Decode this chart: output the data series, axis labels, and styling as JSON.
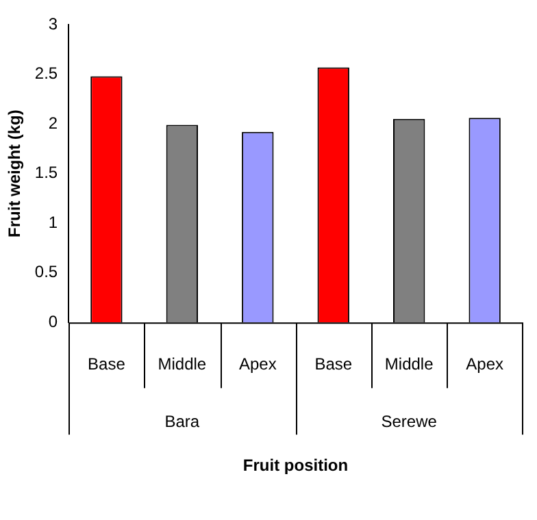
{
  "chart_data": {
    "type": "bar",
    "categories": [
      "Base",
      "Middle",
      "Apex",
      "Base",
      "Middle",
      "Apex"
    ],
    "values": [
      2.48,
      1.99,
      1.92,
      2.57,
      2.05,
      2.06
    ],
    "colors": [
      "#ff0000",
      "#808080",
      "#9999ff",
      "#ff0000",
      "#808080",
      "#9999ff"
    ],
    "xlabel": "Fruit position",
    "ylabel": "Fruit weight (kg)",
    "annotations": [
      "Bara",
      "Serewe"
    ],
    "ylim": [
      0,
      3
    ],
    "yticks": [
      0,
      0.5,
      1,
      1.5,
      2,
      2.5,
      3
    ],
    "grid": false,
    "legend": false
  }
}
